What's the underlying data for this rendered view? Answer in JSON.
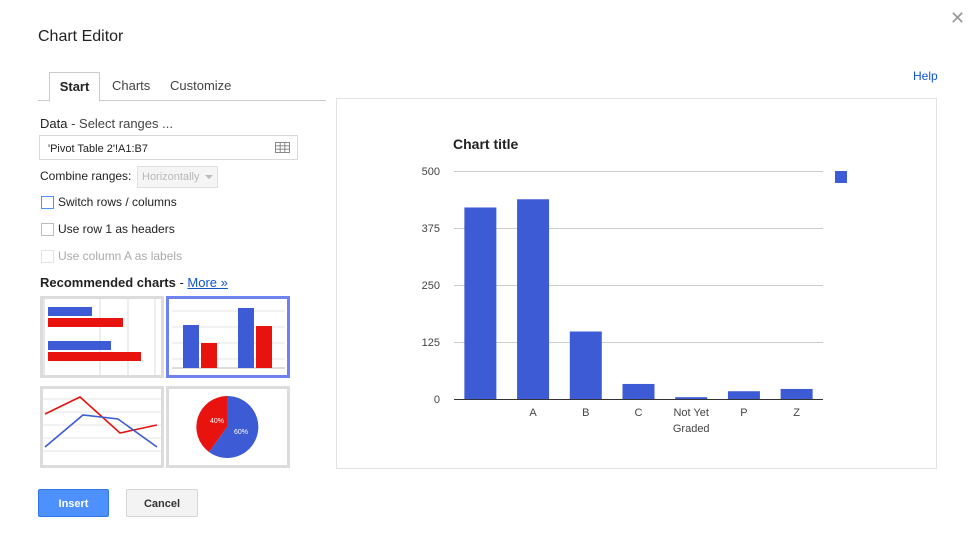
{
  "dialog": {
    "title": "Chart Editor",
    "help_label": "Help",
    "close_glyph": "✕"
  },
  "tabs": [
    {
      "label": "Start",
      "active": true
    },
    {
      "label": "Charts",
      "active": false
    },
    {
      "label": "Customize",
      "active": false
    }
  ],
  "data_section": {
    "label": "Data",
    "select_link": " - Select ranges ...",
    "range_value": "'Pivot Table 2'!A1:B7",
    "range_icon": "grid-icon"
  },
  "combine": {
    "label": "Combine ranges:",
    "value": "Horizontally"
  },
  "checkboxes": [
    {
      "label": "Switch rows / columns",
      "checked": false,
      "disabled": false
    },
    {
      "label": "Use row 1 as headers",
      "checked": false,
      "disabled": false
    },
    {
      "label": "Use column A as labels",
      "checked": false,
      "disabled": true
    }
  ],
  "recommended": {
    "title": "Recommended charts",
    "separator": " - ",
    "more_label": "More »",
    "thumbnails": [
      {
        "type": "horizontal-bar",
        "selected": false
      },
      {
        "type": "column",
        "selected": true
      },
      {
        "type": "line",
        "selected": false
      },
      {
        "type": "pie",
        "selected": false,
        "labels": [
          "40%",
          "60%"
        ]
      }
    ]
  },
  "colors": {
    "series": "#3c5bd4",
    "secondary": "#e8130f",
    "accent": "#4d90fe"
  },
  "chart_data": {
    "type": "bar",
    "title": "Chart title",
    "categories": [
      "",
      "A",
      "B",
      "C",
      "Not Yet Graded",
      "P",
      "Z"
    ],
    "values": [
      420,
      438,
      148,
      33,
      4,
      17,
      22
    ],
    "ylim": [
      0,
      500
    ],
    "yticks": [
      0,
      125,
      250,
      375,
      500
    ],
    "grid": true,
    "legend": "right",
    "series": [
      {
        "values": [
          420,
          438,
          148,
          33,
          4,
          17,
          22
        ]
      }
    ]
  },
  "buttons": {
    "insert": "Insert",
    "cancel": "Cancel"
  }
}
